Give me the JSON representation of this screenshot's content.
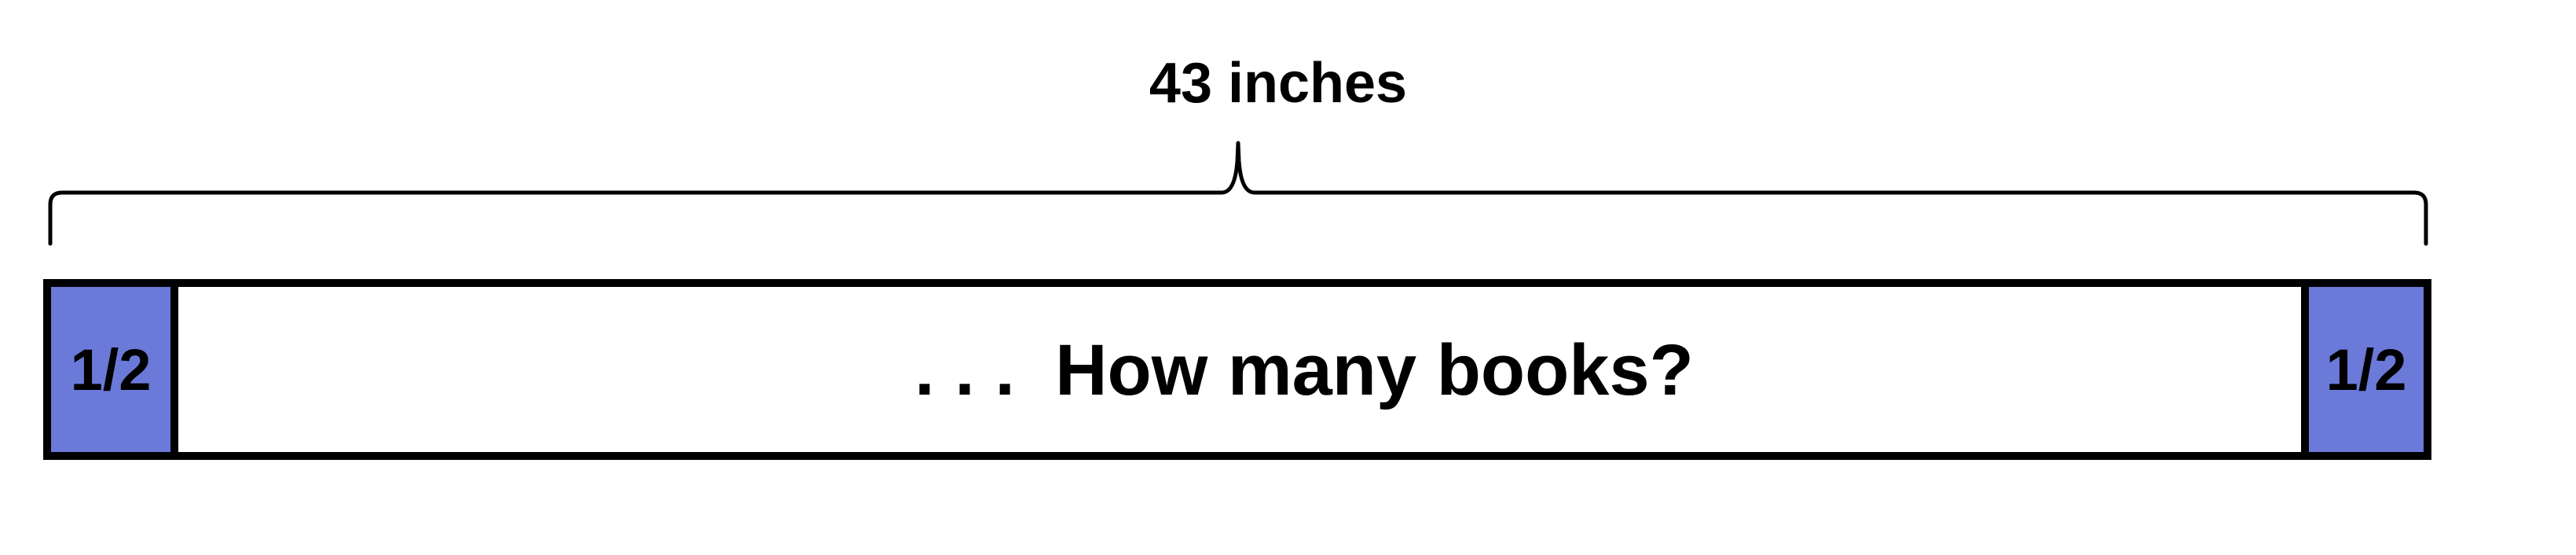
{
  "diagram": {
    "total_length_label": "43 inches",
    "center_label": ". . .  How many books?",
    "left_end_label": "1/2",
    "right_end_label": "1/2"
  },
  "colors": {
    "end_block_fill": "#6b79d9",
    "outline": "#000000",
    "background": "#ffffff"
  }
}
